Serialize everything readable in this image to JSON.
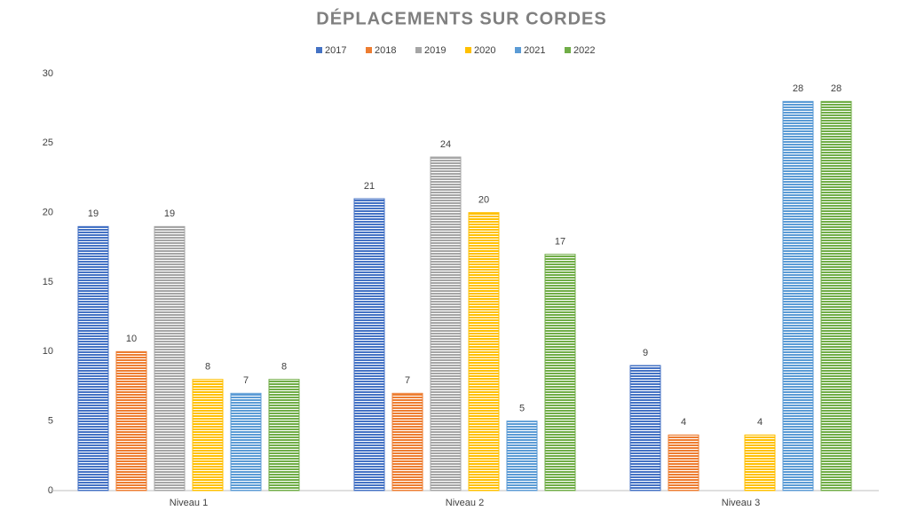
{
  "chart_data": {
    "type": "bar",
    "title": "DÉPLACEMENTS SUR CORDES",
    "categories": [
      "Niveau 1",
      "Niveau 2",
      "Niveau 3"
    ],
    "series": [
      {
        "name": "2017",
        "color": "#4472c4",
        "values": [
          19,
          21,
          9
        ]
      },
      {
        "name": "2018",
        "color": "#ed7d31",
        "values": [
          10,
          7,
          4
        ]
      },
      {
        "name": "2019",
        "color": "#a5a5a5",
        "values": [
          19,
          24,
          null
        ]
      },
      {
        "name": "2020",
        "color": "#ffc000",
        "values": [
          8,
          20,
          4
        ]
      },
      {
        "name": "2021",
        "color": "#5b9bd5",
        "values": [
          7,
          5,
          28
        ]
      },
      {
        "name": "2022",
        "color": "#70ad47",
        "values": [
          8,
          17,
          28
        ]
      }
    ],
    "ylim": [
      0,
      30
    ],
    "yticks": [
      0,
      5,
      10,
      15,
      20,
      25,
      30
    ],
    "grid": false,
    "legend": "top"
  }
}
